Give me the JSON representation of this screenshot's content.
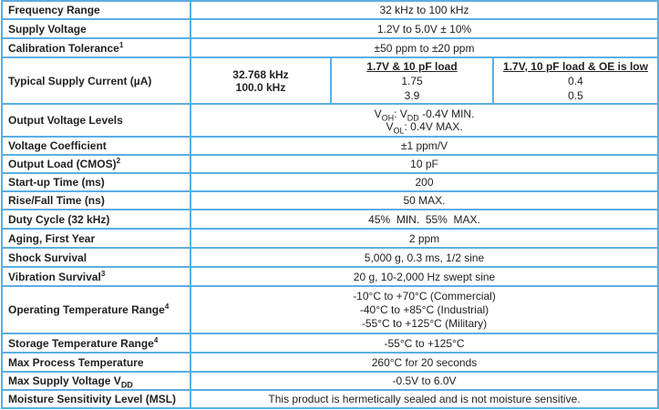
{
  "rows": [
    {
      "label": "Frequency Range",
      "value": "32 kHz to 100 kHz"
    },
    {
      "label": "Supply Voltage",
      "value": "1.2V to 5.0V ± 10%"
    },
    {
      "label": "Calibration Tolerance",
      "sup": "1",
      "value": "±50 ppm to ±20 ppm"
    }
  ],
  "current": {
    "label": "Typical Supply Current (µA)",
    "frequencies": [
      "32.768 kHz",
      "100.0 kHz"
    ],
    "col1": {
      "header": "1.7V & 10 pF load",
      "values": [
        "1.75",
        "3.9"
      ]
    },
    "col2": {
      "header": "1.7V, 10 pF load & OE is low",
      "values": [
        "0.4",
        "0.5"
      ]
    }
  },
  "output_voltage": {
    "label": "Output Voltage Levels",
    "voh": {
      "v": "V",
      "sub": "OH",
      "sep": ": V",
      "sub2": "DD",
      "rest": " -0.4V MIN."
    },
    "vol": {
      "v": "V",
      "sub": "OL",
      "rest": ": 0.4V MAX."
    }
  },
  "rows2": [
    {
      "label": "Voltage Coefficient",
      "value": "±1 ppm/V"
    },
    {
      "label": "Output Load (CMOS)",
      "sup": "2",
      "value": "10 pF"
    },
    {
      "label": "Start-up Time (ms)",
      "value": "200"
    },
    {
      "label": "Rise/Fall Time (ns)",
      "value": "50 MAX."
    },
    {
      "label": "Duty Cycle (32 kHz)",
      "value": "45%  MIN.  55%  MAX."
    },
    {
      "label": "Aging, First Year",
      "value": "2 ppm"
    },
    {
      "label": "Shock Survival",
      "value": "5,000 g, 0.3 ms, 1/2 sine"
    },
    {
      "label": "Vibration Survival",
      "sup": "3",
      "value": "20 g, 10-2,000 Hz swept sine"
    }
  ],
  "operating": {
    "label": "Operating Temperature Range",
    "sup": "4",
    "values": [
      "-10°C to +70°C (Commercial)",
      "-40°C to +85°C (Industrial)",
      "-55°C to +125°C (Military)"
    ]
  },
  "rows3": [
    {
      "label": "Storage Temperature Range",
      "sup": "4",
      "value": "-55°C to +125°C"
    },
    {
      "label": "Max Process Temperature",
      "value": "260°C for 20 seconds"
    }
  ],
  "max_supply": {
    "label": "Max Supply Voltage V",
    "sub": "DD",
    "value": "-0.5V to 6.0V"
  },
  "msl": {
    "label": "Moisture Sensitivity Level (MSL)",
    "value": "This product is hermetically sealed and is not moisture sensitive."
  },
  "colors": {
    "border": "#5aafe3",
    "text": "#222222"
  }
}
